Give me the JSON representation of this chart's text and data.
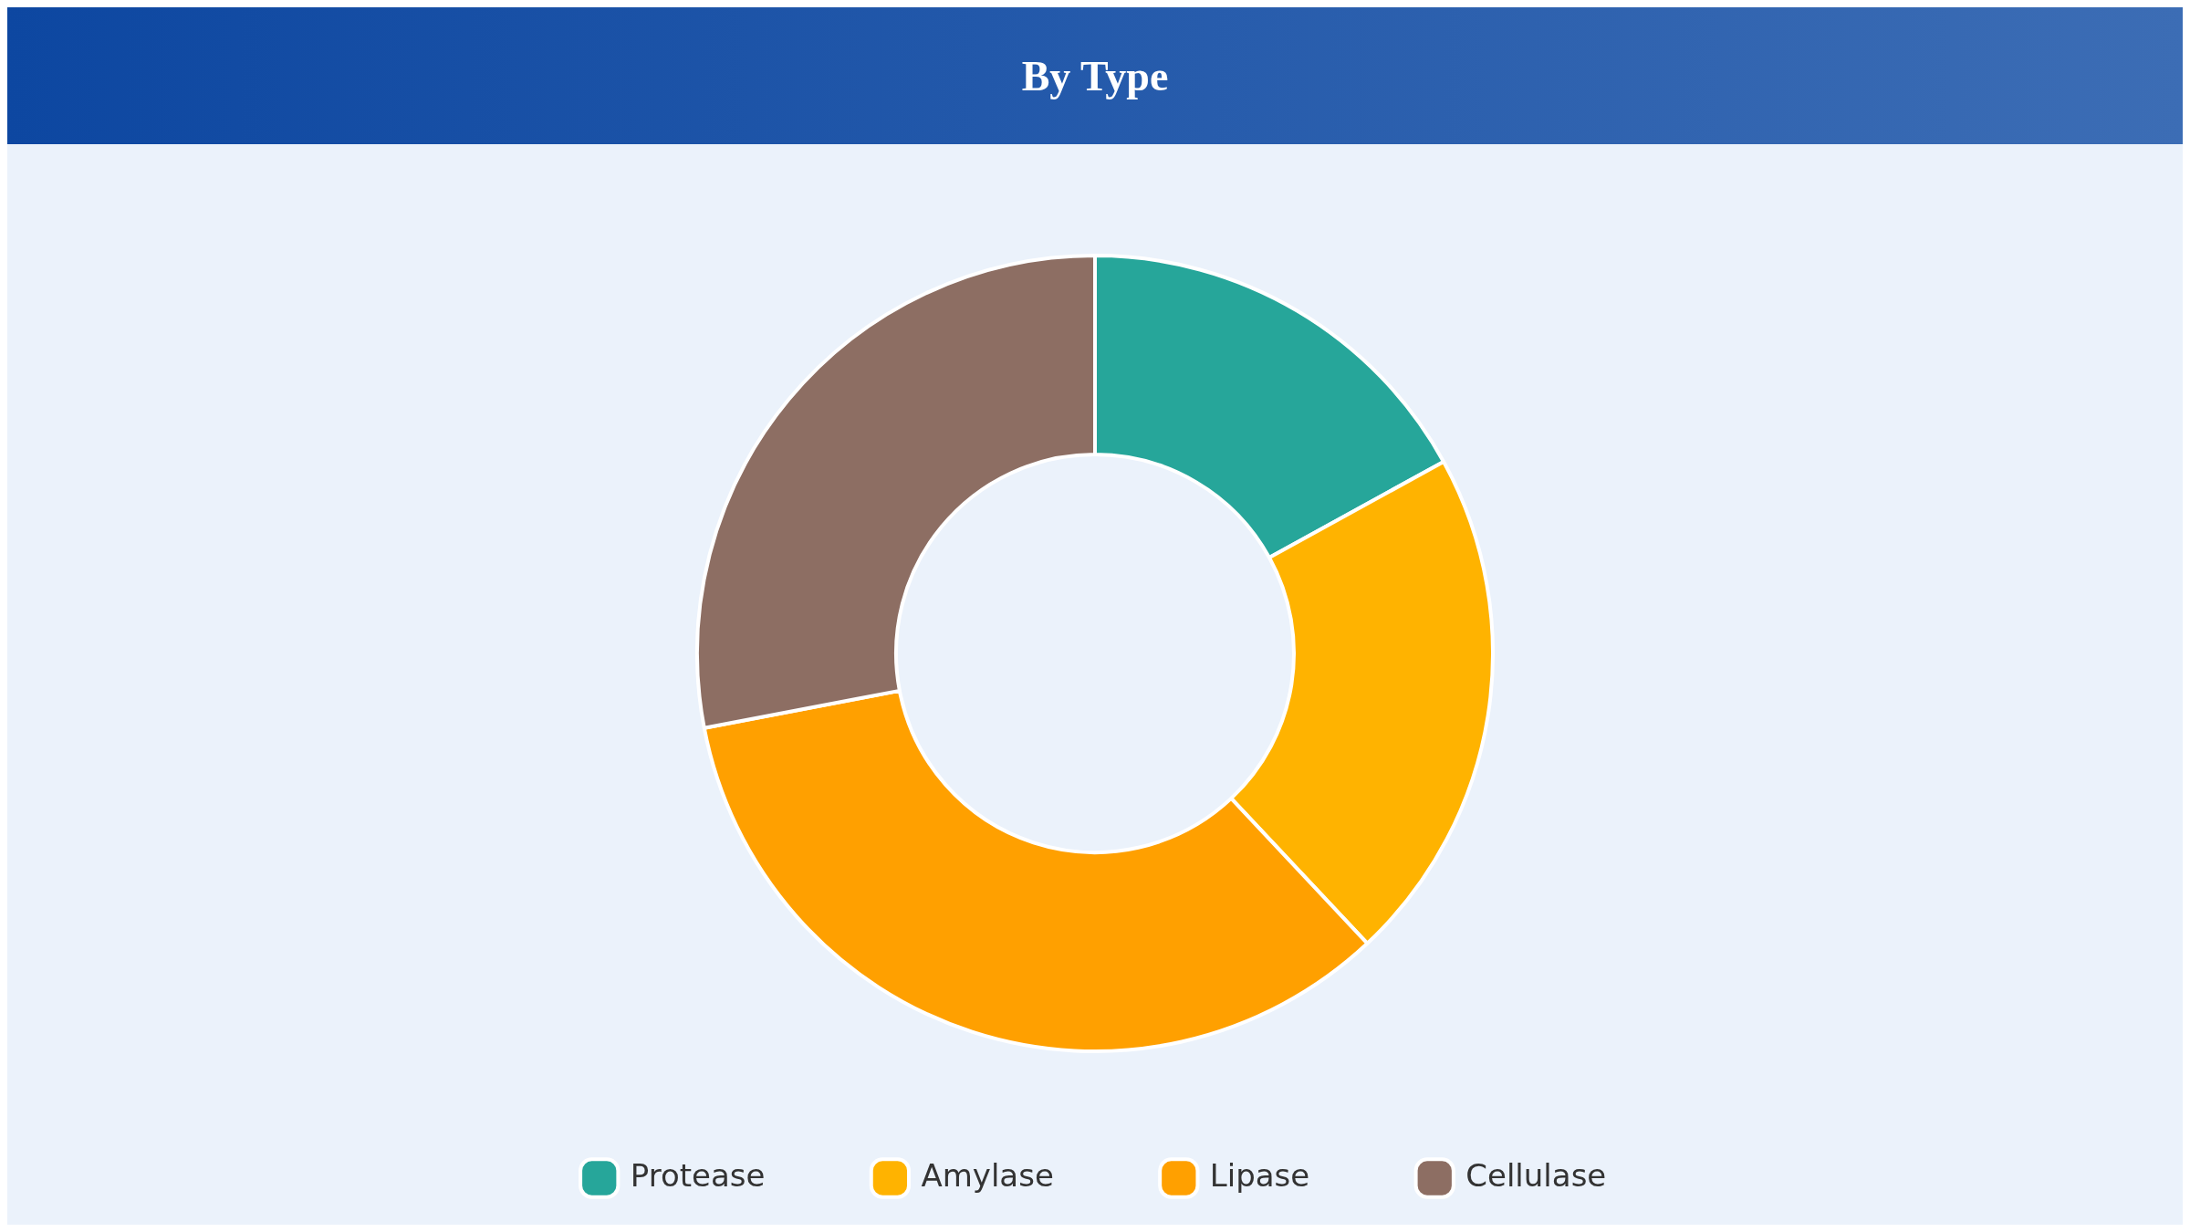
{
  "chart_data": {
    "type": "donut",
    "title": "By Type",
    "categories": [
      "Protease",
      "Amylase",
      "Lipase",
      "Cellulase"
    ],
    "values": [
      17,
      21,
      34,
      28
    ],
    "colors": [
      "#26a69a",
      "#ffb300",
      "#ffa000",
      "#8d6e63"
    ],
    "legend": "bottom"
  }
}
